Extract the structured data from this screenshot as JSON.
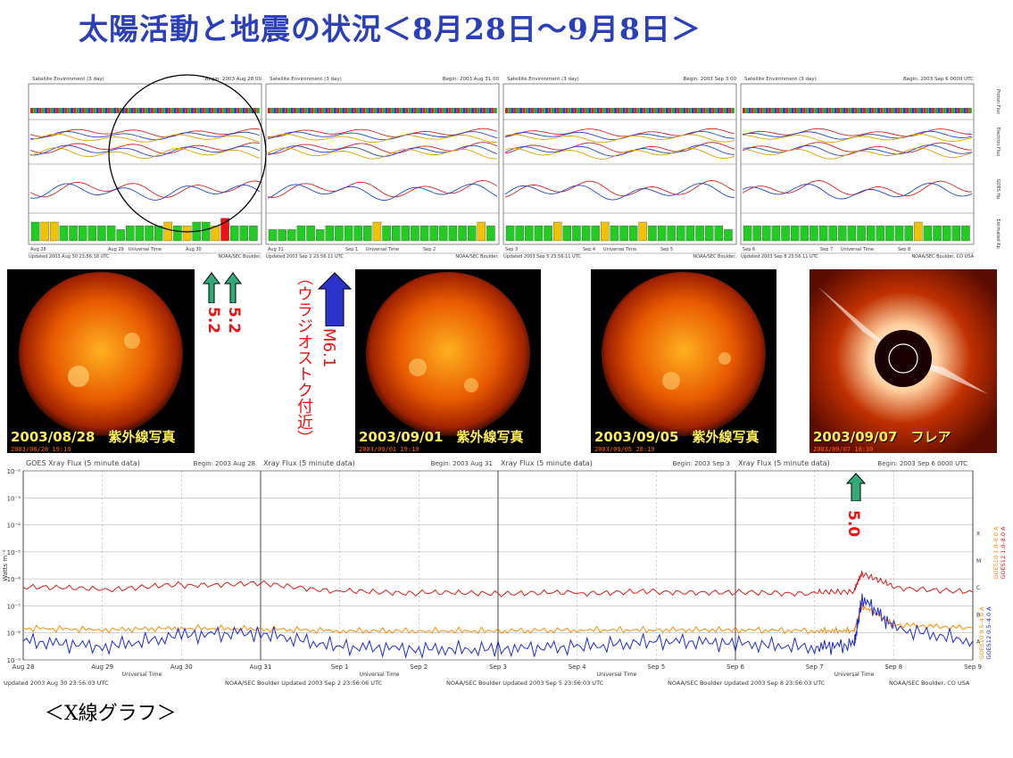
{
  "title": "太陽活動と地震の状況＜8月28日～9月8日＞",
  "bottom_label": "＜X線グラフ＞",
  "sat_panels": [
    {
      "header_left": "Satellite Environment (3 day)",
      "header_right": "Begin:  2003 Aug 28 00",
      "footer_left": "Updated 2003 Aug 30 23:56:18 UTC",
      "footer_right": "NOAA/SEC Boulder,",
      "ticks": [
        "Aug 28",
        "Aug 29",
        "Aug 30"
      ],
      "xlabel": "Universal Time"
    },
    {
      "header_left": "Satellite Environment (3 day)",
      "header_right": "Begin:  2003 Aug 31 00",
      "footer_left": "Updated 2003 Sep  2 23:56:11 UTC",
      "footer_right": "NOAA/SEC Boulder,",
      "ticks": [
        "Aug 31",
        "Sep 1",
        "Sep 2"
      ],
      "xlabel": "Universal Time"
    },
    {
      "header_left": "Satellite Environment (3 day)",
      "header_right": "Begin:  2003 Sep  3 00",
      "footer_left": "Updated 2003 Sep  5 23:56:11 UTC",
      "footer_right": "NOAA/SEC Boulder,",
      "ticks": [
        "Sep 3",
        "Sep 4",
        "Sep 5"
      ],
      "xlabel": "Universal Time"
    },
    {
      "header_left": "Satellite Environment (3 day)",
      "header_right": "Begin:  2003 Sep  6 0000 UTC",
      "footer_left": "Updated 2003 Sep  8 23:56:11 UTC",
      "footer_right": "NOAA/SEC Boulder, CO USA",
      "ticks": [
        "Sep 6",
        "Sep 7",
        "Sep 8"
      ],
      "xlabel": "Universal Time"
    }
  ],
  "side_axis_labels": [
    "Proton Flux",
    "Electron Flux",
    "GOES Hp",
    "Estimated Kp"
  ],
  "kp_bars": [
    [
      5,
      5,
      5,
      4,
      4,
      4,
      4,
      4,
      4,
      3,
      4,
      4,
      4,
      4,
      5,
      4,
      4,
      5,
      5,
      4,
      6,
      4,
      4,
      4
    ],
    [
      3,
      3,
      3,
      4,
      4,
      3,
      4,
      4,
      4,
      4,
      4,
      5,
      4,
      4,
      4,
      4,
      4,
      4,
      4,
      4,
      4,
      4,
      5,
      4
    ],
    [
      4,
      4,
      4,
      4,
      4,
      5,
      4,
      4,
      4,
      4,
      5,
      4,
      4,
      4,
      5,
      4,
      4,
      4,
      4,
      4,
      4,
      4,
      4,
      3
    ],
    [
      4,
      4,
      4,
      4,
      4,
      4,
      4,
      4,
      4,
      4,
      4,
      4,
      4,
      4,
      4,
      4,
      4,
      4,
      5,
      4,
      4,
      4,
      4,
      4
    ]
  ],
  "kp_yellow": [
    [
      1,
      2,
      14,
      16,
      19
    ],
    [
      11,
      22
    ],
    [
      5,
      10,
      14
    ],
    [
      18
    ]
  ],
  "kp_red": [
    [
      20
    ],
    [],
    [],
    []
  ],
  "quake_markers": {
    "m52_a": "5.2",
    "m52_b": "5.2",
    "m61": "M6.1",
    "m61_place": "（ウラジオストク付近）",
    "m50": "5.0"
  },
  "sun_images": [
    {
      "caption": "2003/08/28　紫外線写真",
      "stamp": "2003/08/28 19:19"
    },
    {
      "caption": "2003/09/01　紫外線写真",
      "stamp": "2003/09/01 19:19"
    },
    {
      "caption": "2003/09/05　紫外線写真",
      "stamp": "2003/09/05 20:19"
    },
    {
      "caption": "2003/09/07　フレア",
      "stamp": "2003/09/07 18:30"
    }
  ],
  "chart_data": {
    "type": "line",
    "title": "GOES Xray Flux (5 minute data)",
    "panels": [
      {
        "title": "GOES Xray Flux (5 minute data)",
        "begin": "Begin:  2003 Aug 28",
        "ticks": [
          "Aug 28",
          "Aug 29",
          "Aug 30"
        ]
      },
      {
        "title": "Xray Flux (5 minute data)",
        "begin": "Begin:  2003 Aug 31",
        "ticks": [
          "Aug 31",
          "Sep 1",
          "Sep 2"
        ]
      },
      {
        "title": "Xray Flux (5 minute data)",
        "begin": "Begin:  2003 Sep 3",
        "ticks": [
          "Sep 3",
          "Sep 4",
          "Sep 5"
        ]
      },
      {
        "title": "Xray Flux (5 minute data)",
        "begin": "Begin:  2003 Sep 6 0000 UTC",
        "ticks": [
          "Sep 6",
          "Sep 7",
          "Sep 8",
          "Sep 9"
        ]
      }
    ],
    "ylabel": "Watts m⁻²",
    "yscale": "log",
    "ylim": [
      1e-09,
      0.01
    ],
    "ytick_labels": [
      "10⁻²",
      "10⁻³",
      "10⁻⁴",
      "10⁻⁵",
      "10⁻⁶",
      "10⁻⁷",
      "10⁻⁸",
      "10⁻⁹"
    ],
    "flare_classes": [
      "X",
      "M",
      "C",
      "B",
      "A"
    ],
    "xlabel": "Universal Time",
    "footer": [
      "Updated 2003 Aug 30 23:56:03 UTC",
      "NOAA/SEC Boulder  Updated 2003 Sep  2 23:56:06 UTC",
      "NOAA/SEC Boulder  Updated 2003 Sep  5 23:56:03 UTC",
      "NOAA/SEC Boulder  Updated 2003 Sep  8 23:56:03 UTC",
      "NOAA/SEC Boulder, CO USA"
    ],
    "series": [
      {
        "name": "GOES12  1.0–8.0 A",
        "color": "#dd1a1a",
        "x": [
          "Aug 28",
          "Aug 29",
          "Aug 30",
          "Aug 31",
          "Sep 1",
          "Sep 2",
          "Sep 3",
          "Sep 4",
          "Sep 5",
          "Sep 6",
          "Sep 7",
          "Sep 7.5",
          "Sep 7.6",
          "Sep 8",
          "Sep 9"
        ],
        "values": [
          5e-07,
          4e-07,
          6e-07,
          7e-07,
          3.5e-07,
          3e-07,
          2.8e-07,
          3e-07,
          3.4e-07,
          3.2e-07,
          3e-07,
          3.5e-07,
          1.6e-06,
          5e-07,
          3.2e-07
        ]
      },
      {
        "name": "GOES10  1.0–8.0 A",
        "color": "#ff8a00",
        "x": [
          "Aug 28",
          "Aug 29",
          "Aug 30",
          "Aug 31",
          "Sep 1",
          "Sep 2",
          "Sep 3",
          "Sep 4",
          "Sep 5",
          "Sep 6",
          "Sep 7",
          "Sep 7.5",
          "Sep 7.6",
          "Sep 8",
          "Sep 9"
        ],
        "values": [
          1.5e-08,
          1.3e-08,
          1.5e-08,
          1.4e-08,
          1.2e-08,
          1.2e-08,
          1.2e-08,
          1.3e-08,
          1.3e-08,
          1.3e-08,
          1.2e-08,
          1.2e-08,
          1e-07,
          2e-08,
          1.5e-08
        ]
      },
      {
        "name": "GOES12  0.5–4.0 A",
        "color": "#1d2bd8",
        "x": [
          "Aug 28",
          "Aug 29",
          "Aug 30",
          "Aug 31",
          "Sep 1",
          "Sep 2",
          "Sep 3",
          "Sep 4",
          "Sep 5",
          "Sep 6",
          "Sep 7",
          "Sep 7.5",
          "Sep 7.6",
          "Sep 8",
          "Sep 9"
        ],
        "values": [
          5e-09,
          3e-09,
          8e-09,
          1e-08,
          3e-09,
          2.5e-09,
          2.5e-09,
          3e-09,
          5e-09,
          4e-09,
          3e-09,
          3.5e-09,
          2e-07,
          1.5e-08,
          5e-09
        ]
      }
    ],
    "legend": [
      "GOES10 0.5–4.0 A",
      "GOES12 0.5–4.0 A",
      "GOES10 1.0–8.0 A",
      "GOES12 1.0–8.0 A"
    ]
  }
}
